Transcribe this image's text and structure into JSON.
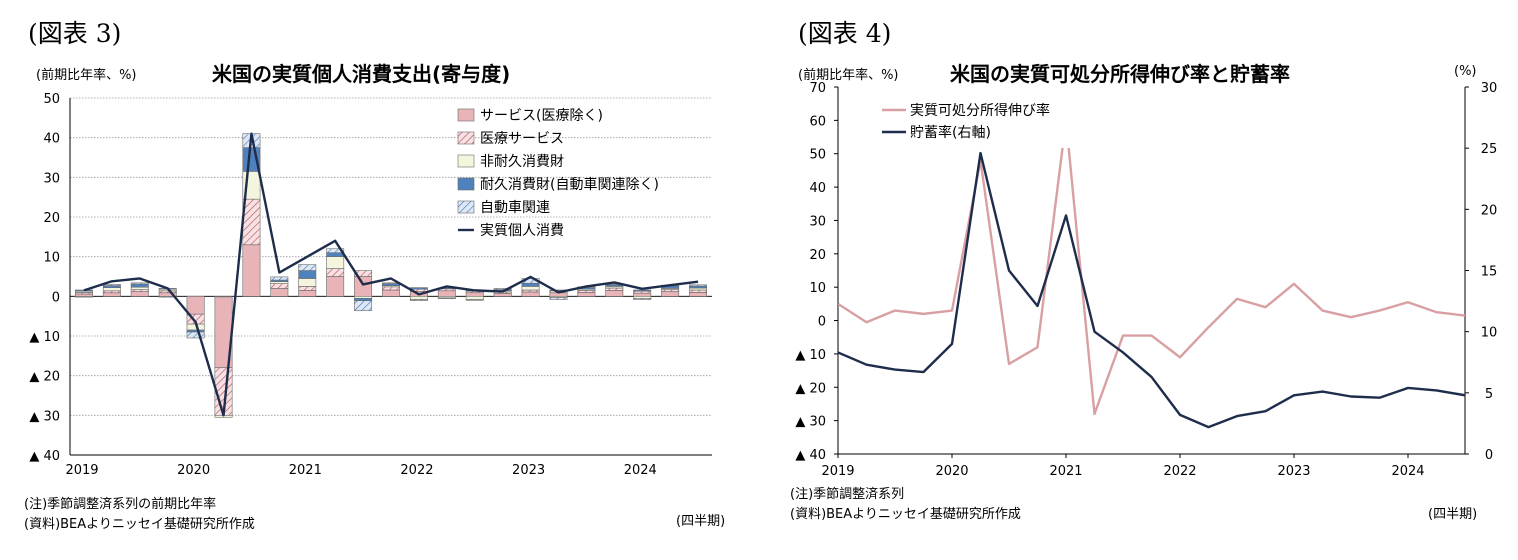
{
  "chart_data": [
    {
      "type": "bar",
      "stacked": true,
      "figure_label": "(図表 3)",
      "title": "米国の実質個人消費支出(寄与度)",
      "ylabel": "(前期比年率、%)",
      "xunit": "(四半期)",
      "notes": [
        "(注)季節調整済系列の前期比年率",
        "(資料)BEAよりニッセイ基礎研究所作成"
      ],
      "ylim": [
        -40,
        50
      ],
      "yticks": [
        50,
        40,
        30,
        20,
        10,
        0,
        -10,
        -20,
        -30,
        -40
      ],
      "ytick_labels": [
        "50",
        "40",
        "30",
        "20",
        "10",
        "0",
        "▲ 10",
        "▲ 20",
        "▲ 30",
        "▲ 40"
      ],
      "x_year_labels": [
        "2019",
        "2020",
        "2021",
        "2022",
        "2023",
        "2024"
      ],
      "grid": true,
      "legend_position": "top-right",
      "categories": [
        "2019Q1",
        "2019Q2",
        "2019Q3",
        "2019Q4",
        "2020Q1",
        "2020Q2",
        "2020Q3",
        "2020Q4",
        "2021Q1",
        "2021Q2",
        "2021Q3",
        "2021Q4",
        "2022Q1",
        "2022Q2",
        "2022Q3",
        "2022Q4",
        "2023Q1",
        "2023Q2",
        "2023Q3",
        "2023Q4",
        "2024Q1",
        "2024Q2",
        "2024Q3"
      ],
      "series": [
        {
          "name": "サービス(医療除く)",
          "kind": "bar",
          "color": "#e8b4b8",
          "pattern": "solid",
          "values": [
            0.6,
            0.9,
            1.2,
            0.9,
            -4.5,
            -18,
            13,
            2.0,
            1.5,
            5.0,
            5.0,
            1.6,
            1.2,
            1.4,
            0.9,
            0.7,
            1.1,
            0.9,
            1.0,
            1.5,
            0.8,
            1.2,
            1.0
          ]
        },
        {
          "name": "医療サービス",
          "kind": "bar",
          "color": "#c06070",
          "pattern": "hatch-red",
          "values": [
            0.4,
            0.5,
            0.5,
            0.5,
            -2.5,
            -12,
            11.5,
            1.2,
            1.0,
            2.0,
            1.5,
            0.8,
            0.6,
            0.5,
            0.4,
            0.4,
            0.5,
            0.5,
            0.5,
            0.6,
            0.5,
            0.5,
            0.6
          ]
        },
        {
          "name": "非耐久消費財",
          "kind": "bar",
          "color": "#f3f6dc",
          "pattern": "solid",
          "values": [
            0.3,
            0.8,
            0.6,
            0.4,
            -1.5,
            -0.5,
            7.0,
            0.5,
            2.0,
            3.0,
            -0.5,
            0.3,
            -0.8,
            -0.4,
            -0.8,
            0.3,
            0.9,
            -0.3,
            0.3,
            0.4,
            -0.5,
            0.3,
            0.5
          ]
        },
        {
          "name": "耐久消費財(自動車関連除く)",
          "kind": "bar",
          "color": "#4f81bd",
          "pattern": "solid",
          "values": [
            0.3,
            0.5,
            0.8,
            0.2,
            -0.5,
            0.0,
            6.0,
            0.4,
            2.0,
            1.0,
            -0.6,
            0.5,
            0.4,
            0.2,
            0.2,
            0.3,
            0.8,
            0.2,
            0.4,
            0.4,
            0.3,
            0.6,
            0.5
          ]
        },
        {
          "name": "自動車関連",
          "kind": "bar",
          "color": "#c8daf0",
          "pattern": "hatch-blue",
          "values": [
            -0.2,
            0.3,
            0.3,
            -0.2,
            -1.5,
            0.0,
            3.5,
            0.8,
            1.5,
            1.0,
            -2.5,
            0.2,
            -0.3,
            -0.2,
            -0.2,
            0.3,
            1.2,
            -0.5,
            0.2,
            0.2,
            -0.3,
            0.2,
            0.3
          ]
        },
        {
          "name": "実質個人消費",
          "kind": "line",
          "color": "#1f2d4d",
          "values": [
            1.5,
            3.8,
            4.5,
            2.0,
            -6.5,
            -30,
            41,
            6.0,
            10.0,
            14.0,
            3.0,
            4.5,
            0.5,
            2.5,
            1.5,
            1.2,
            4.9,
            1.0,
            2.5,
            3.5,
            1.9,
            2.8,
            3.7
          ]
        }
      ]
    },
    {
      "type": "line",
      "figure_label": "(図表 4)",
      "title": "米国の実質可処分所得伸び率と貯蓄率",
      "ylabel": "(前期比年率、%)",
      "y2label": "(%)",
      "xunit": "(四半期)",
      "notes": [
        "(注)季節調整済系列",
        "(資料)BEAよりニッセイ基礎研究所作成"
      ],
      "ylim": [
        -40,
        70
      ],
      "y2lim": [
        0,
        30
      ],
      "yticks": [
        70,
        60,
        50,
        40,
        30,
        20,
        10,
        0,
        -10,
        -20,
        -30,
        -40
      ],
      "ytick_labels": [
        "70",
        "60",
        "50",
        "40",
        "30",
        "20",
        "10",
        "0",
        "▲ 10",
        "▲ 20",
        "▲ 30",
        "▲ 40"
      ],
      "y2ticks": [
        30,
        25,
        20,
        15,
        10,
        5,
        0
      ],
      "y2tick_labels": [
        "30",
        "25",
        "20",
        "15",
        "10",
        "5",
        "0"
      ],
      "x_year_labels": [
        "2019",
        "2020",
        "2021",
        "2022",
        "2023",
        "2024"
      ],
      "grid": false,
      "legend_position": "top-left",
      "categories": [
        "2019Q1",
        "2019Q2",
        "2019Q3",
        "2019Q4",
        "2020Q1",
        "2020Q2",
        "2020Q3",
        "2020Q4",
        "2021Q1",
        "2021Q2",
        "2021Q3",
        "2021Q4",
        "2022Q1",
        "2022Q2",
        "2022Q3",
        "2022Q4",
        "2023Q1",
        "2023Q2",
        "2023Q3",
        "2023Q4",
        "2024Q1",
        "2024Q2",
        "2024Q3"
      ],
      "series": [
        {
          "name": "実質可処分所得伸び率",
          "axis": "left",
          "color": "#d9a0a4",
          "values": [
            5.0,
            -0.5,
            3.0,
            2.0,
            3.0,
            48.0,
            -13.0,
            -8.0,
            60.0,
            -28.0,
            -4.5,
            -4.5,
            -11.0,
            -2.0,
            6.5,
            4.0,
            11.0,
            3.0,
            1.0,
            3.0,
            5.5,
            2.5,
            1.5
          ]
        },
        {
          "name": "貯蓄率(右軸)",
          "axis": "right",
          "color": "#1f2d4d",
          "values": [
            8.3,
            7.3,
            6.9,
            6.7,
            9.0,
            24.6,
            15.0,
            12.1,
            19.5,
            10.0,
            8.3,
            6.3,
            3.2,
            2.2,
            3.1,
            3.5,
            4.8,
            5.1,
            4.7,
            4.6,
            5.4,
            5.2,
            4.8
          ]
        }
      ]
    }
  ]
}
